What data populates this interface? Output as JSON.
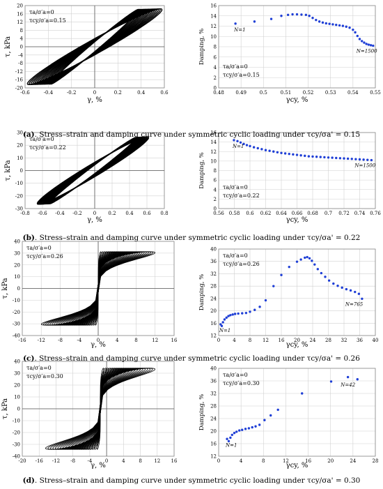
{
  "panels": [
    {
      "caption_label": "(a)",
      "caption_text": ". Stress–strain and damping curve under symmetric cyclic loading under τcy/σa' = 0.15",
      "loop_chart": {
        "type": "line",
        "xlabel": "γ, %",
        "ylabel": "τ, kPa",
        "xlim": [
          -0.6,
          0.6
        ],
        "ylim": [
          -20,
          20
        ],
        "xticks": [
          -0.6,
          -0.4,
          -0.2,
          0,
          0.2,
          0.4,
          0.6
        ],
        "yticks": [
          -20,
          -16,
          -12,
          -8,
          -4,
          0,
          4,
          8,
          12,
          16,
          20
        ],
        "xtick_labels": [
          "-0.6",
          "-0.4",
          "-0.2",
          "0",
          "0.2",
          "0.4",
          "0.6"
        ],
        "ytick_labels": [
          "-20",
          "-16",
          "-12",
          "-8",
          "-4",
          "0",
          "4",
          "8",
          "12",
          "16",
          "20"
        ],
        "annotations": [
          "τa/σ′a=0",
          "τcy/σ′a=0.15"
        ],
        "loops": {
          "style": "dense",
          "n": 14,
          "amp_start": 0.38,
          "amp_end": 0.58,
          "tau_amp": 18,
          "shift": 0.0
        }
      },
      "damping_chart": {
        "type": "scatter",
        "xlabel": "γcy, %",
        "ylabel": "Damping, %",
        "xlim": [
          0.48,
          0.55
        ],
        "ylim": [
          0,
          16
        ],
        "xticks": [
          0.48,
          0.49,
          0.5,
          0.51,
          0.52,
          0.53,
          0.54,
          0.55
        ],
        "yticks": [
          0,
          2,
          4,
          6,
          8,
          10,
          12,
          14,
          16
        ],
        "xtick_labels": [
          "0.48",
          "0.49",
          "0.5",
          "0.51",
          "0.52",
          "0.53",
          "0.54",
          "0.55"
        ],
        "ytick_labels": [
          "0",
          "2",
          "4",
          "6",
          "8",
          "10",
          "12",
          "14",
          "16"
        ],
        "annotations": [
          "τa/σ′a=0",
          "τcy/σ′a=0.15"
        ],
        "start_label": "N=1",
        "end_label": "N=1500",
        "x": [
          0.4875,
          0.496,
          0.5035,
          0.508,
          0.511,
          0.513,
          0.515,
          0.517,
          0.519,
          0.5205,
          0.522,
          0.5235,
          0.525,
          0.5265,
          0.528,
          0.5295,
          0.531,
          0.5325,
          0.534,
          0.5355,
          0.537,
          0.5385,
          0.54,
          0.541,
          0.542,
          0.543,
          0.544,
          0.545,
          0.546,
          0.547,
          0.548,
          0.549
        ],
        "y": [
          12.5,
          12.9,
          13.4,
          14.0,
          14.2,
          14.3,
          14.3,
          14.25,
          14.2,
          14.0,
          13.6,
          13.2,
          12.9,
          12.7,
          12.55,
          12.45,
          12.35,
          12.25,
          12.15,
          12.05,
          11.9,
          11.7,
          11.3,
          10.8,
          10.1,
          9.5,
          9.1,
          8.8,
          8.55,
          8.4,
          8.3,
          8.2
        ]
      }
    },
    {
      "caption_label": "(b)",
      "caption_text": ". Stress–strain and damping curve under symmetric cyclic loading under τcy/σa' = 0.22",
      "loop_chart": {
        "type": "line",
        "xlabel": "γ, %",
        "ylabel": "τ, kPa",
        "xlim": [
          -0.8,
          0.8
        ],
        "ylim": [
          -30,
          30
        ],
        "xticks": [
          -0.8,
          -0.6,
          -0.4,
          -0.2,
          0,
          0.2,
          0.4,
          0.6,
          0.8
        ],
        "yticks": [
          -30,
          -20,
          -10,
          0,
          10,
          20,
          30
        ],
        "xtick_labels": [
          "-0.8",
          "-0.6",
          "-0.4",
          "-0.2",
          "0",
          "0.2",
          "0.4",
          "0.6",
          "0.8"
        ],
        "ytick_labels": [
          "-30",
          "-20",
          "-10",
          "0",
          "10",
          "20",
          "30"
        ],
        "annotations": [
          "τa/σ′a=0",
          "τcy/σ′a=0.22"
        ],
        "loops": {
          "style": "dense",
          "n": 14,
          "amp_start": 0.5,
          "amp_end": 0.64,
          "tau_amp": 26,
          "shift": -0.02
        }
      },
      "damping_chart": {
        "type": "scatter",
        "xlabel": "γcy, %",
        "ylabel": "Damping, %",
        "xlim": [
          0.56,
          0.76
        ],
        "ylim": [
          0,
          16
        ],
        "xticks": [
          0.56,
          0.58,
          0.6,
          0.62,
          0.64,
          0.66,
          0.68,
          0.7,
          0.72,
          0.74,
          0.76
        ],
        "yticks": [
          0,
          2,
          4,
          6,
          8,
          10,
          12,
          14,
          16
        ],
        "xtick_labels": [
          "0.56",
          "0.58",
          "0.6",
          "0.62",
          "0.64",
          "0.66",
          "0.68",
          "0.7",
          "0.72",
          "0.74",
          "0.76"
        ],
        "ytick_labels": [
          "0",
          "2",
          "4",
          "6",
          "8",
          "10",
          "12",
          "14",
          "16"
        ],
        "annotations": [
          "τa/σ′a=0",
          "τcy/σ′a=0.22"
        ],
        "start_label": "N=1",
        "end_label": "N=1500",
        "x": [
          0.5795,
          0.584,
          0.588,
          0.592,
          0.596,
          0.6,
          0.605,
          0.61,
          0.615,
          0.62,
          0.625,
          0.63,
          0.635,
          0.64,
          0.645,
          0.65,
          0.655,
          0.66,
          0.665,
          0.67,
          0.675,
          0.68,
          0.685,
          0.69,
          0.695,
          0.7,
          0.705,
          0.71,
          0.715,
          0.72,
          0.725,
          0.73,
          0.735,
          0.74,
          0.745,
          0.75,
          0.755
        ],
        "y": [
          14.4,
          14.2,
          13.9,
          13.6,
          13.35,
          13.15,
          12.9,
          12.7,
          12.5,
          12.3,
          12.15,
          12.0,
          11.85,
          11.7,
          11.6,
          11.5,
          11.4,
          11.3,
          11.2,
          11.1,
          11.0,
          10.95,
          10.9,
          10.85,
          10.8,
          10.75,
          10.7,
          10.65,
          10.6,
          10.55,
          10.5,
          10.45,
          10.4,
          10.35,
          10.3,
          10.25,
          10.2
        ]
      }
    },
    {
      "caption_label": "(c)",
      "caption_text": ". Stress–strain and damping curve under symmetric cyclic loading under τcy/σa' = 0.26",
      "loop_chart": {
        "type": "line",
        "xlabel": "γ, %",
        "ylabel": "τ, kPa",
        "xlim": [
          -16,
          16
        ],
        "ylim": [
          -40,
          40
        ],
        "xticks": [
          -16,
          -12,
          -8,
          -4,
          0,
          4,
          8,
          12,
          16
        ],
        "yticks": [
          -40,
          -30,
          -20,
          -10,
          0,
          10,
          20,
          30,
          40
        ],
        "xtick_labels": [
          "-16",
          "-12",
          "-8",
          "-4",
          "0",
          "4",
          "8",
          "12",
          "16"
        ],
        "ytick_labels": [
          "-40",
          "-30",
          "-20",
          "-10",
          "0",
          "10",
          "20",
          "30",
          "40"
        ],
        "annotations": [
          "τa/σ′a=0",
          "τcy/σ′a=0.26"
        ],
        "loops": {
          "style": "spread",
          "n": 26,
          "amp_start": 0.6,
          "amp_end": 12,
          "tau_amp": 31,
          "shift": 0.0
        }
      },
      "damping_chart": {
        "type": "scatter",
        "xlabel": "γcy, %",
        "ylabel": "Damping, %",
        "xlim": [
          0,
          40
        ],
        "ylim": [
          12,
          40
        ],
        "xticks": [
          0,
          4,
          8,
          12,
          16,
          20,
          24,
          28,
          32,
          36,
          40
        ],
        "yticks": [
          12,
          16,
          20,
          24,
          28,
          32,
          36,
          40
        ],
        "xtick_labels": [
          "0",
          "4",
          "8",
          "12",
          "16",
          "20",
          "24",
          "28",
          "32",
          "36",
          "40"
        ],
        "ytick_labels": [
          "12",
          "16",
          "20",
          "24",
          "28",
          "32",
          "36",
          "40"
        ],
        "annotations": [
          "τa/σ′a=0",
          "τcy/σ′a=0.26"
        ],
        "start_label": "N=1",
        "end_label": "N=765",
        "x": [
          0.5,
          0.8,
          1.1,
          1.5,
          2.0,
          2.5,
          3.0,
          3.6,
          4.2,
          5.0,
          6.0,
          7.0,
          8.0,
          9.2,
          10.5,
          12.0,
          14.0,
          16.0,
          18.0,
          20.0,
          21.0,
          22.0,
          22.6,
          23.2,
          23.8,
          24.5,
          25.3,
          26.2,
          27.2,
          28.2,
          29.3,
          30.4,
          31.5,
          32.6,
          33.7,
          34.8,
          35.8,
          36.6
        ],
        "y": [
          15.6,
          15.1,
          16.3,
          17.2,
          17.8,
          18.3,
          18.6,
          18.8,
          19.0,
          19.1,
          19.2,
          19.3,
          19.7,
          20.3,
          21.3,
          23.4,
          28.0,
          31.6,
          34.2,
          35.9,
          36.6,
          37.2,
          37.4,
          37.0,
          36.2,
          35.0,
          33.5,
          32.2,
          31.0,
          29.8,
          28.8,
          28.1,
          27.5,
          27.0,
          26.6,
          26.1,
          25.5,
          23.9
        ]
      }
    },
    {
      "caption_label": "(d)",
      "caption_text": ". Stress–strain and damping curve under symmetric cyclic loading under τcy/σa' = 0.30",
      "loop_chart": {
        "type": "line",
        "xlabel": "γ, %",
        "ylabel": "τ, kPa",
        "xlim": [
          -20,
          16
        ],
        "ylim": [
          -40,
          40
        ],
        "xticks": [
          -20,
          -16,
          -12,
          -8,
          -4,
          0,
          4,
          8,
          12,
          16
        ],
        "yticks": [
          -40,
          -30,
          -20,
          -10,
          0,
          10,
          20,
          30,
          40
        ],
        "xtick_labels": [
          "-20",
          "-16",
          "-12",
          "-8",
          "-4",
          "0",
          "4",
          "8",
          "12",
          "16"
        ],
        "ytick_labels": [
          "-40",
          "-30",
          "-20",
          "-10",
          "0",
          "10",
          "20",
          "30",
          "40"
        ],
        "annotations": [
          "τa/σ′a=0",
          "τcy/σ′a=0.30"
        ],
        "loops": {
          "style": "spread",
          "n": 22,
          "amp_start": 0.8,
          "amp_end": 13,
          "tau_amp": 34,
          "shift": -1.5
        }
      },
      "damping_chart": {
        "type": "scatter",
        "xlabel": "γcy, %",
        "ylabel": "Damping, %",
        "xlim": [
          0,
          28
        ],
        "ylim": [
          12,
          40
        ],
        "xticks": [
          0,
          4,
          8,
          12,
          16,
          20,
          24,
          28
        ],
        "yticks": [
          12,
          16,
          20,
          24,
          28,
          32,
          36,
          40
        ],
        "xtick_labels": [
          "0",
          "4",
          "8",
          "12",
          "16",
          "20",
          "24",
          "28"
        ],
        "ytick_labels": [
          "12",
          "16",
          "20",
          "24",
          "28",
          "32",
          "36",
          "40"
        ],
        "annotations": [
          "τa/σ′a=0",
          "τcy/σ′a=0.30"
        ],
        "start_label": "N=1",
        "end_label": "N=42",
        "x": [
          1.5,
          1.8,
          2.1,
          2.4,
          2.8,
          3.2,
          3.7,
          4.2,
          4.8,
          5.4,
          6.0,
          6.6,
          7.3,
          8.2,
          9.3,
          10.6,
          14.9,
          20.1,
          23.1,
          24.8
        ],
        "y": [
          17.5,
          16.8,
          17.9,
          18.8,
          19.4,
          19.8,
          20.2,
          20.4,
          20.7,
          20.9,
          21.2,
          21.5,
          22.0,
          23.5,
          25.0,
          26.8,
          32.0,
          35.8,
          37.2,
          36.5
        ]
      }
    }
  ]
}
